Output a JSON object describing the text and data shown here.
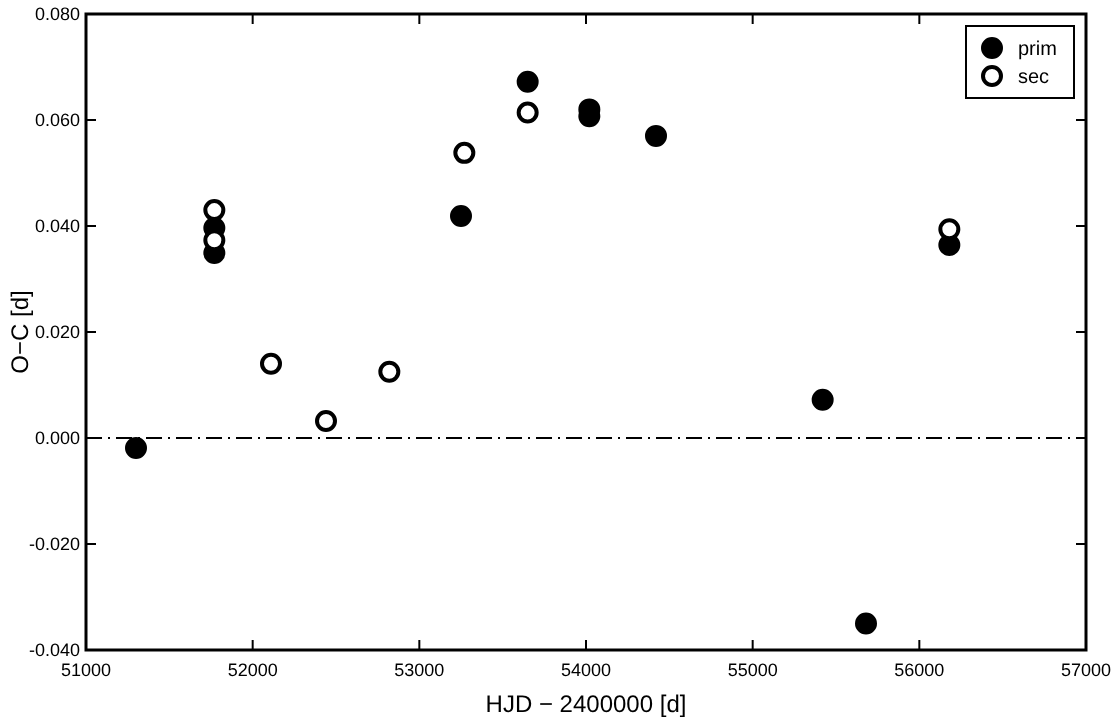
{
  "chart_data": {
    "type": "scatter",
    "xlabel": "HJD − 2400000 [d]",
    "ylabel": "O−C [d]",
    "xlim": [
      51000,
      57000
    ],
    "xticks": [
      51000,
      52000,
      53000,
      54000,
      55000,
      56000,
      57000
    ],
    "ylim": [
      -0.04,
      0.08
    ],
    "yticks": [
      {
        "value": -0.04,
        "label": "-0.040"
      },
      {
        "value": -0.02,
        "label": "-0.020"
      },
      {
        "value": 0,
        "label": "0.000"
      },
      {
        "value": 0.02,
        "label": "0.020"
      },
      {
        "value": 0.04,
        "label": "0.040"
      },
      {
        "value": 0.06,
        "label": "0.060"
      },
      {
        "value": 0.08,
        "label": "0.080"
      }
    ],
    "grid": false,
    "legend": "top right",
    "marker": "circle",
    "ref_lines": [
      {
        "axis": "y",
        "value": 0,
        "color": "#000000",
        "line_style": "dashdot"
      }
    ],
    "series": [
      {
        "name": "prim",
        "color": "#000000",
        "x": [
          51300,
          51770,
          51770,
          53250,
          53650,
          54020,
          54020,
          54420,
          55420,
          55680,
          56180
        ],
        "values": [
          -0.0019,
          0.0396,
          0.0349,
          0.0419,
          0.0672,
          0.062,
          0.0607,
          0.057,
          0.0072,
          -0.035,
          0.0364
        ]
      },
      {
        "name": "sec",
        "color": "#ffffff",
        "x": [
          51770,
          51770,
          52110,
          52440,
          52820,
          53270,
          53650,
          56180
        ],
        "values": [
          0.043,
          0.0373,
          0.014,
          0.0032,
          0.0125,
          0.0538,
          0.0614,
          0.0394
        ]
      }
    ]
  }
}
